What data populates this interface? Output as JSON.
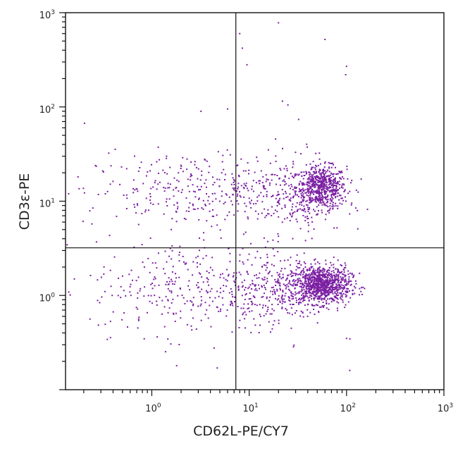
{
  "chart_data": {
    "type": "scatter",
    "title": "",
    "xlabel": "CD62L-PE/CY7",
    "ylabel": "CD3ε-PE",
    "x_scale": "log",
    "y_scale": "log",
    "xlim": [
      0.13,
      1000
    ],
    "ylim": [
      0.1,
      1000
    ],
    "x_ticks": [
      {
        "base": "10",
        "exp": "0",
        "value": 1
      },
      {
        "base": "10",
        "exp": "1",
        "value": 10
      },
      {
        "base": "10",
        "exp": "2",
        "value": 100
      },
      {
        "base": "10",
        "exp": "3",
        "value": 1000
      }
    ],
    "y_ticks": [
      {
        "base": "10",
        "exp": "0",
        "value": 1
      },
      {
        "base": "10",
        "exp": "1",
        "value": 10
      },
      {
        "base": "10",
        "exp": "2",
        "value": 100
      },
      {
        "base": "10",
        "exp": "3",
        "value": 1000
      }
    ],
    "quadrant_gates": {
      "x": 7.3,
      "y": 3.2
    },
    "point_color": "#7b1fa2",
    "grid": false,
    "legend": "none",
    "populations": [
      {
        "center": [
          55,
          14
        ],
        "spread_log10": [
          0.13,
          0.11
        ],
        "count": 600
      },
      {
        "center": [
          55,
          1.3
        ],
        "spread_log10": [
          0.15,
          0.1
        ],
        "count": 950
      },
      {
        "center": [
          3,
          1.2
        ],
        "spread_log10": [
          0.55,
          0.25
        ],
        "count": 350
      },
      {
        "center": [
          2.5,
          13
        ],
        "spread_log10": [
          0.55,
          0.2
        ],
        "count": 300
      },
      {
        "center": [
          25,
          12
        ],
        "spread_log10": [
          0.3,
          0.22
        ],
        "count": 250
      },
      {
        "center": [
          20,
          1.2
        ],
        "spread_log10": [
          0.25,
          0.2
        ],
        "count": 250
      }
    ],
    "outliers": [
      [
        8,
        600
      ],
      [
        8.5,
        420
      ],
      [
        20,
        780
      ],
      [
        60,
        520
      ],
      [
        100,
        270
      ],
      [
        9.5,
        280
      ],
      [
        98,
        220
      ],
      [
        22,
        115
      ],
      [
        3.2,
        90
      ],
      [
        6,
        95
      ],
      [
        108,
        0.16
      ],
      [
        0.13,
        0.95
      ],
      [
        1.8,
        0.18
      ],
      [
        4.7,
        0.17
      ],
      [
        0.14,
        12
      ],
      [
        100,
        0.35
      ],
      [
        25,
        105
      ]
    ]
  }
}
